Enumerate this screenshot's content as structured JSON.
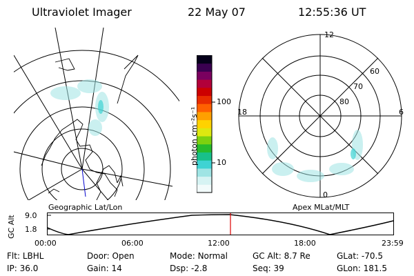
{
  "header": {
    "instrument": "Ultraviolet Imager",
    "date": "22 May 07",
    "time": "12:55:36 UT"
  },
  "geo_panel": {
    "label": "Geographic Lat/Lon"
  },
  "apex_panel": {
    "label": "Apex MLat/MLT",
    "mlt_labels": {
      "top": "12",
      "left": "18",
      "right": "6",
      "bottom": "0"
    },
    "lat_labels": [
      "60",
      "70",
      "80"
    ]
  },
  "colorbar": {
    "unit_label": "photon cm⁻²s⁻¹",
    "tick_labels": [
      "100",
      "10"
    ],
    "colors": [
      "#f2fbfb",
      "#d6f3f3",
      "#9fe4e4",
      "#3fd3d3",
      "#18c08a",
      "#26bb2c",
      "#7dd10f",
      "#dde810",
      "#ffd200",
      "#ffa000",
      "#ff6000",
      "#e82c00",
      "#cc0000",
      "#b2003a",
      "#7a005f",
      "#3a0050",
      "#05001a"
    ]
  },
  "timeline": {
    "y_axis_label": "GC Alt",
    "y_ticks": [
      "9.0",
      "1.8"
    ],
    "x_ticks": [
      "00:00",
      "06:00",
      "12:00",
      "18:00",
      "23:59"
    ],
    "current_time": "12:55",
    "marker_color": "#dd0000"
  },
  "status": {
    "flt_label": "Flt:",
    "flt_value": "LBHL",
    "door_label": "Door:",
    "door_value": "Open",
    "mode_label": "Mode:",
    "mode_value": "Normal",
    "gcalt_label": "GC Alt:",
    "gcalt_value": "8.7 Re",
    "glat_label": "GLat:",
    "glat_value": "-70.5",
    "ip_label": "IP:",
    "ip_value": "36.0",
    "gain_label": "Gain:",
    "gain_value": "14",
    "dsp_label": "Dsp:",
    "dsp_value": "-2.8",
    "seq_label": "Seq:",
    "seq_value": "39",
    "glon_label": "GLon:",
    "glon_value": "181.5"
  }
}
